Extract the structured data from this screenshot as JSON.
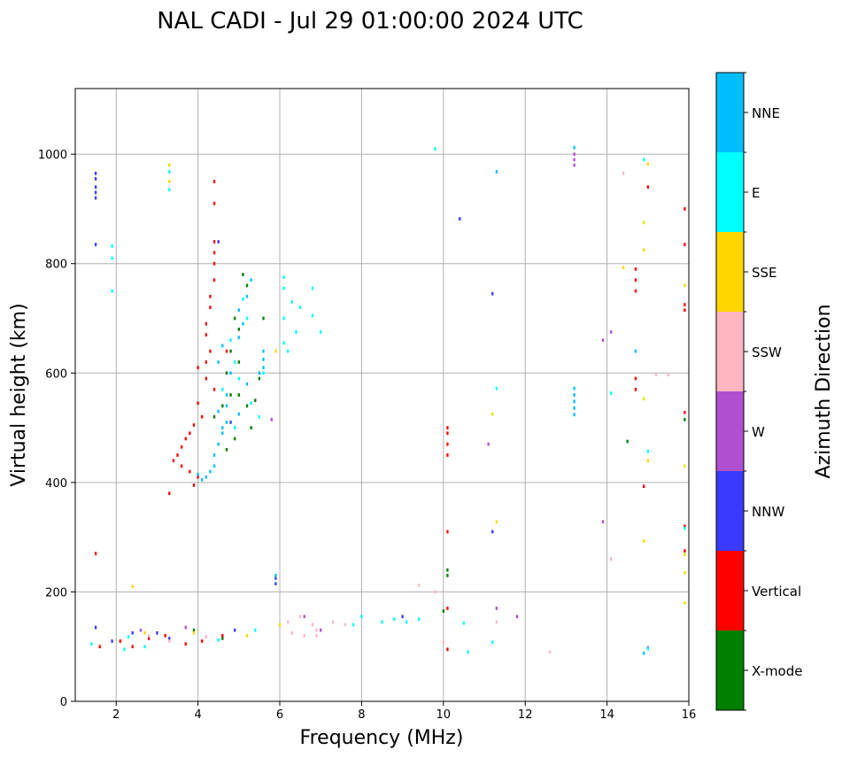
{
  "chart_data": {
    "type": "scatter",
    "title": "NAL CADI - Jul 29 01:00:00 2024 UTC",
    "xlabel": "Frequency (MHz)",
    "ylabel": "Virtual height (km)",
    "xlim": [
      1,
      16
    ],
    "ylim": [
      0,
      1120
    ],
    "xticks": [
      2,
      4,
      6,
      8,
      10,
      12,
      14,
      16
    ],
    "yticks": [
      0,
      200,
      400,
      600,
      800,
      1000
    ],
    "grid": true,
    "colorbar": {
      "label": "Azimuth Direction",
      "categories": [
        {
          "name": "X-mode",
          "color": "#008000"
        },
        {
          "name": "Vertical",
          "color": "#ff0000"
        },
        {
          "name": "NNW",
          "color": "#3a3aff"
        },
        {
          "name": "W",
          "color": "#b050d0"
        },
        {
          "name": "SSW",
          "color": "#ffb6c1"
        },
        {
          "name": "SSE",
          "color": "#ffd700"
        },
        {
          "name": "E",
          "color": "#00ffff"
        },
        {
          "name": "NNE",
          "color": "#00bfff"
        }
      ]
    },
    "point_width_mhz": 0.05,
    "point_height_km": 6,
    "series": [
      {
        "name": "X-mode",
        "points": [
          [
            5.1,
            780
          ],
          [
            5.2,
            760
          ],
          [
            4.9,
            700
          ],
          [
            5.0,
            680
          ],
          [
            4.8,
            640
          ],
          [
            5.0,
            620
          ],
          [
            4.7,
            600
          ],
          [
            5.5,
            590
          ],
          [
            5.0,
            560
          ],
          [
            4.6,
            540
          ],
          [
            4.4,
            520
          ],
          [
            5.3,
            500
          ],
          [
            4.9,
            480
          ],
          [
            4.7,
            460
          ],
          [
            5.6,
            700
          ],
          [
            4.8,
            560
          ],
          [
            10.0,
            165
          ],
          [
            10.1,
            240
          ],
          [
            10.1,
            230
          ],
          [
            14.5,
            475
          ],
          [
            15.9,
            515
          ],
          [
            5.2,
            540
          ],
          [
            5.4,
            550
          ],
          [
            3.9,
            130
          ],
          [
            4.6,
            115
          ]
        ]
      },
      {
        "name": "Vertical",
        "points": [
          [
            4.4,
            950
          ],
          [
            4.4,
            910
          ],
          [
            4.4,
            840
          ],
          [
            4.4,
            820
          ],
          [
            4.4,
            800
          ],
          [
            4.4,
            770
          ],
          [
            4.3,
            740
          ],
          [
            4.3,
            720
          ],
          [
            4.2,
            690
          ],
          [
            4.2,
            670
          ],
          [
            4.3,
            640
          ],
          [
            4.2,
            620
          ],
          [
            4.0,
            610
          ],
          [
            4.2,
            590
          ],
          [
            4.4,
            570
          ],
          [
            4.0,
            545
          ],
          [
            4.1,
            520
          ],
          [
            3.9,
            505
          ],
          [
            3.8,
            490
          ],
          [
            3.7,
            480
          ],
          [
            3.6,
            465
          ],
          [
            3.5,
            450
          ],
          [
            3.4,
            440
          ],
          [
            3.6,
            430
          ],
          [
            3.8,
            420
          ],
          [
            4.0,
            410
          ],
          [
            3.9,
            395
          ],
          [
            3.3,
            380
          ],
          [
            1.5,
            270
          ],
          [
            10.1,
            500
          ],
          [
            10.1,
            490
          ],
          [
            10.1,
            470
          ],
          [
            10.1,
            450
          ],
          [
            14.7,
            790
          ],
          [
            14.7,
            770
          ],
          [
            14.7,
            750
          ],
          [
            14.7,
            590
          ],
          [
            14.7,
            570
          ],
          [
            15.9,
            900
          ],
          [
            15.9,
            835
          ],
          [
            15.9,
            725
          ],
          [
            15.9,
            715
          ],
          [
            15.9,
            528
          ],
          [
            15.9,
            320
          ],
          [
            15.9,
            275
          ],
          [
            10.1,
            310
          ],
          [
            10.1,
            170
          ],
          [
            2.1,
            110
          ],
          [
            2.8,
            115
          ],
          [
            3.2,
            120
          ],
          [
            3.7,
            105
          ],
          [
            4.1,
            110
          ],
          [
            4.6,
            120
          ],
          [
            10.1,
            95
          ],
          [
            1.6,
            100
          ],
          [
            2.4,
            100
          ],
          [
            15.0,
            940
          ],
          [
            14.9,
            393
          ],
          [
            4.7,
            640
          ]
        ]
      },
      {
        "name": "NNW",
        "points": [
          [
            1.5,
            965
          ],
          [
            1.5,
            955
          ],
          [
            1.5,
            940
          ],
          [
            1.5,
            930
          ],
          [
            1.5,
            920
          ],
          [
            1.5,
            835
          ],
          [
            4.5,
            840
          ],
          [
            4.8,
            510
          ],
          [
            11.2,
            745
          ],
          [
            10.4,
            882
          ],
          [
            5.9,
            225
          ],
          [
            5.9,
            215
          ],
          [
            1.5,
            135
          ],
          [
            2.4,
            125
          ],
          [
            3.3,
            115
          ],
          [
            1.9,
            110
          ],
          [
            3.0,
            125
          ],
          [
            4.9,
            130
          ],
          [
            9.0,
            155
          ],
          [
            11.2,
            310
          ]
        ]
      },
      {
        "name": "W",
        "points": [
          [
            13.2,
            1000
          ],
          [
            13.2,
            990
          ],
          [
            13.9,
            660
          ],
          [
            14.1,
            675
          ],
          [
            13.9,
            328
          ],
          [
            11.3,
            170
          ],
          [
            11.8,
            155
          ],
          [
            11.1,
            470
          ],
          [
            5.8,
            515
          ],
          [
            2.6,
            130
          ],
          [
            3.7,
            135
          ],
          [
            6.6,
            155
          ],
          [
            7.0,
            130
          ],
          [
            15.0,
            98
          ],
          [
            13.2,
            980
          ]
        ]
      },
      {
        "name": "SSW",
        "points": [
          [
            14.4,
            965
          ],
          [
            14.1,
            260
          ],
          [
            12.6,
            90
          ],
          [
            9.4,
            212
          ],
          [
            9.8,
            200
          ],
          [
            2.8,
            120
          ],
          [
            3.3,
            110
          ],
          [
            4.2,
            118
          ],
          [
            6.2,
            145
          ],
          [
            6.5,
            155
          ],
          [
            6.8,
            140
          ],
          [
            6.9,
            130
          ],
          [
            7.3,
            145
          ],
          [
            7.6,
            140
          ],
          [
            10.0,
            108
          ],
          [
            11.3,
            145
          ],
          [
            6.3,
            125
          ],
          [
            6.6,
            120
          ],
          [
            6.9,
            120
          ],
          [
            15.2,
            597
          ],
          [
            15.5,
            597
          ]
        ]
      },
      {
        "name": "SSE",
        "points": [
          [
            3.3,
            980
          ],
          [
            3.3,
            950
          ],
          [
            15.0,
            982
          ],
          [
            14.9,
            875
          ],
          [
            14.9,
            825
          ],
          [
            14.4,
            793
          ],
          [
            15.9,
            760
          ],
          [
            15.9,
            430
          ],
          [
            14.9,
            553
          ],
          [
            15.0,
            440
          ],
          [
            14.9,
            293
          ],
          [
            15.9,
            268
          ],
          [
            15.9,
            235
          ],
          [
            15.9,
            180
          ],
          [
            11.3,
            328
          ],
          [
            11.2,
            525
          ],
          [
            2.4,
            210
          ],
          [
            2.7,
            125
          ],
          [
            3.9,
            125
          ],
          [
            5.2,
            120
          ],
          [
            6.0,
            140
          ],
          [
            8.5,
            145
          ],
          [
            5.9,
            640
          ]
        ]
      },
      {
        "name": "E",
        "points": [
          [
            3.3,
            968
          ],
          [
            3.3,
            935
          ],
          [
            1.9,
            832
          ],
          [
            1.9,
            810
          ],
          [
            1.9,
            750
          ],
          [
            5.1,
            735
          ],
          [
            5.2,
            700
          ],
          [
            4.8,
            660
          ],
          [
            4.9,
            620
          ],
          [
            5.0,
            590
          ],
          [
            4.6,
            570
          ],
          [
            5.3,
            545
          ],
          [
            5.5,
            520
          ],
          [
            4.9,
            500
          ],
          [
            6.1,
            775
          ],
          [
            6.1,
            755
          ],
          [
            6.3,
            730
          ],
          [
            6.5,
            720
          ],
          [
            6.8,
            755
          ],
          [
            6.8,
            705
          ],
          [
            6.1,
            700
          ],
          [
            6.4,
            675
          ],
          [
            7.0,
            675
          ],
          [
            6.1,
            655
          ],
          [
            6.2,
            640
          ],
          [
            9.8,
            1010
          ],
          [
            14.9,
            990
          ],
          [
            14.1,
            563
          ],
          [
            11.3,
            572
          ],
          [
            15.0,
            457
          ],
          [
            15.9,
            316
          ],
          [
            10.6,
            90
          ],
          [
            11.2,
            108
          ],
          [
            10.5,
            143
          ],
          [
            8.5,
            145
          ],
          [
            8.8,
            150
          ],
          [
            9.1,
            145
          ],
          [
            9.4,
            150
          ],
          [
            8.0,
            155
          ],
          [
            7.8,
            140
          ],
          [
            2.3,
            118
          ],
          [
            1.4,
            105
          ],
          [
            2.2,
            95
          ],
          [
            2.7,
            100
          ],
          [
            4.5,
            112
          ],
          [
            5.4,
            130
          ],
          [
            5.6,
            600
          ],
          [
            15.0,
            96
          ]
        ]
      },
      {
        "name": "NNE",
        "points": [
          [
            13.2,
            1012
          ],
          [
            13.2,
            572
          ],
          [
            13.2,
            560
          ],
          [
            13.2,
            548
          ],
          [
            13.2,
            536
          ],
          [
            13.2,
            524
          ],
          [
            5.3,
            770
          ],
          [
            5.2,
            740
          ],
          [
            5.0,
            715
          ],
          [
            5.1,
            690
          ],
          [
            5.0,
            665
          ],
          [
            4.6,
            650
          ],
          [
            4.5,
            620
          ],
          [
            5.6,
            640
          ],
          [
            5.6,
            625
          ],
          [
            5.6,
            610
          ],
          [
            5.5,
            600
          ],
          [
            4.7,
            560
          ],
          [
            4.7,
            540
          ],
          [
            4.7,
            510
          ],
          [
            4.6,
            490
          ],
          [
            4.5,
            470
          ],
          [
            4.4,
            450
          ],
          [
            4.4,
            430
          ],
          [
            4.3,
            420
          ],
          [
            4.2,
            410
          ],
          [
            4.1,
            405
          ],
          [
            4.0,
            415
          ],
          [
            5.0,
            525
          ],
          [
            5.2,
            580
          ],
          [
            11.3,
            968
          ],
          [
            14.7,
            640
          ],
          [
            14.9,
            88
          ],
          [
            4.6,
            500
          ],
          [
            4.5,
            530
          ],
          [
            4.8,
            600
          ],
          [
            5.9,
            230
          ]
        ]
      }
    ]
  }
}
